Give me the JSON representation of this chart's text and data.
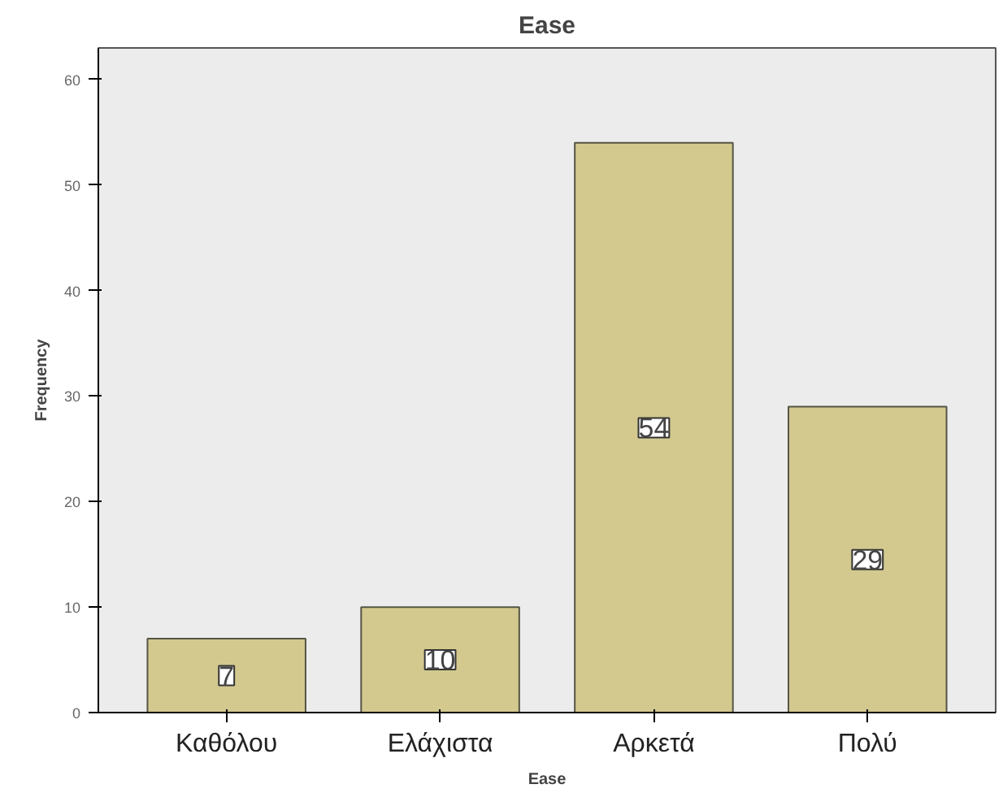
{
  "chart_data": {
    "type": "bar",
    "title": "Ease",
    "xlabel": "Ease",
    "ylabel": "Frequency",
    "categories": [
      "Καθόλου",
      "Ελάχιστα",
      "Αρκετά",
      "Πολύ"
    ],
    "values": [
      7,
      10,
      54,
      29
    ],
    "color": "#d3c98f",
    "data_labels": true,
    "ylim": [
      0,
      63
    ],
    "yticks": [
      0,
      10,
      20,
      30,
      40,
      50,
      60
    ],
    "grid": false
  }
}
